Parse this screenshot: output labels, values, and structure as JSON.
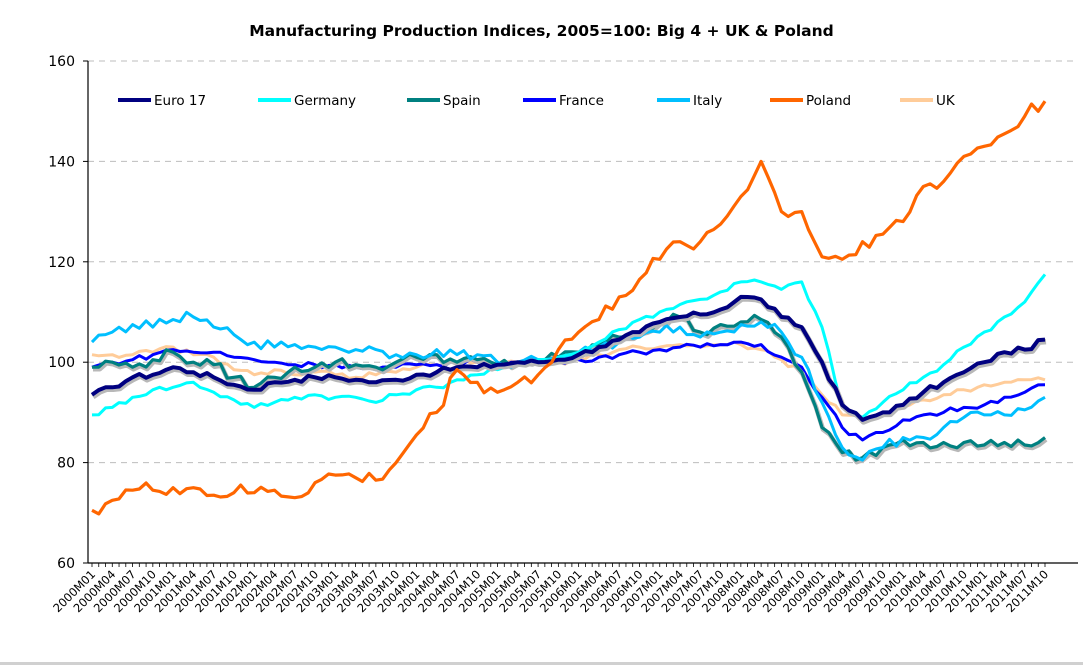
{
  "chart_data": {
    "type": "line",
    "title": "Manufacturing Production Indices, 2005=100: Big 4 + UK & Poland",
    "xlabel": "",
    "ylabel": "",
    "ylim": [
      60,
      160
    ],
    "yticks": [
      60,
      80,
      100,
      120,
      140,
      160
    ],
    "grid": "horizontal-dashed",
    "legend_position": "top",
    "x_tick_labels": [
      "2000M01",
      "2000M04",
      "2000M07",
      "2000M10",
      "2001M01",
      "2001M04",
      "2001M07",
      "2001M10",
      "2002M01",
      "2002M04",
      "2002M07",
      "2002M10",
      "2003M01",
      "2003M04",
      "2003M07",
      "2003M10",
      "2004M01",
      "2004M04",
      "2004M07",
      "2004M10",
      "2005M01",
      "2005M04",
      "2005M07",
      "2005M10",
      "2006M01",
      "2006M04",
      "2006M07",
      "2006M10",
      "2007M01",
      "2007M04",
      "2007M07",
      "2007M10",
      "2008M01",
      "2008M04",
      "2008M07",
      "2008M10",
      "2009M01",
      "2009M04",
      "2009M07",
      "2009M10",
      "2010M01",
      "2010M04",
      "2010M07",
      "2010M10",
      "2011M01",
      "2011M04",
      "2011M07",
      "2011M10"
    ],
    "x_note": "values are quarterly readings at each tick month",
    "series": [
      {
        "name": "Euro 17",
        "color": "#000080",
        "values": [
          93.5,
          95,
          97,
          97.5,
          99,
          98,
          97,
          95.5,
          94.5,
          96,
          96.5,
          97,
          97,
          96.5,
          96,
          96.5,
          97.5,
          98,
          99,
          99,
          99.5,
          100,
          100,
          100.5,
          101.5,
          103,
          104.5,
          106,
          108,
          109,
          109.5,
          110.5,
          113,
          112.5,
          109,
          107,
          100,
          91.5,
          88.5,
          90,
          91.5,
          94,
          96,
          98,
          100,
          102,
          102.5,
          104.5
        ]
      },
      {
        "name": "Germany",
        "color": "#00FFFF",
        "values": [
          89.5,
          91,
          93,
          94.5,
          95,
          96,
          94,
          92.5,
          91,
          92,
          93,
          93.5,
          93,
          93,
          92,
          93.5,
          94.5,
          95,
          96.5,
          97.5,
          98.5,
          99.5,
          100.5,
          101,
          102,
          104,
          106.5,
          108.5,
          110,
          111.5,
          112.5,
          114,
          116,
          116,
          114.5,
          116,
          107,
          91,
          89,
          92,
          94.5,
          97,
          99.5,
          103,
          106,
          109,
          112,
          117.5
        ]
      },
      {
        "name": "Spain",
        "color": "#008080",
        "values": [
          99,
          100,
          99,
          100.5,
          102,
          100,
          99.5,
          97,
          95,
          97,
          99,
          99,
          100,
          99.5,
          99,
          100,
          101,
          101.5,
          100,
          100.5,
          99.5,
          100,
          100.5,
          101,
          102,
          103.5,
          105,
          106,
          108,
          109,
          106,
          107.5,
          108,
          108.5,
          105,
          98,
          87,
          82,
          81,
          83,
          84.5,
          84,
          84,
          84,
          83.5,
          84,
          83.5,
          85
        ]
      },
      {
        "name": "France",
        "color": "#0000FF",
        "values": [
          99,
          100,
          100.5,
          101.5,
          102.5,
          102,
          102,
          101,
          100.5,
          100,
          99.5,
          99.5,
          99.5,
          99,
          98.5,
          99,
          99.5,
          99.5,
          100,
          100,
          99.5,
          100,
          99.5,
          100,
          100.5,
          101,
          101.5,
          102,
          102.5,
          103,
          103,
          103.5,
          104,
          103.5,
          101,
          99,
          93,
          87,
          84.5,
          86,
          88.5,
          89.5,
          90,
          91,
          91.5,
          93,
          94,
          95.5
        ]
      },
      {
        "name": "Italy",
        "color": "#00BFFF",
        "values": [
          104,
          106,
          107.5,
          107,
          108.5,
          109,
          107,
          105.5,
          104,
          103,
          103.5,
          103,
          103,
          102.5,
          102.5,
          101.5,
          101.5,
          102.5,
          101.5,
          101.5,
          100,
          100,
          100.5,
          101,
          102,
          103,
          104,
          105,
          106,
          107,
          105,
          106,
          107.5,
          108,
          106,
          101,
          92,
          83,
          80.5,
          83,
          85,
          85,
          87,
          89,
          89.5,
          89.5,
          90.5,
          93
        ]
      },
      {
        "name": "Poland",
        "color": "#FF6600",
        "values": [
          70.5,
          72.5,
          74.5,
          74.5,
          75,
          75,
          73.5,
          74,
          74,
          74.5,
          73,
          76,
          77.5,
          77,
          76.5,
          80,
          85.5,
          90,
          98.5,
          96,
          94,
          96,
          97.5,
          102.5,
          106,
          108.5,
          113,
          116.5,
          120.5,
          124,
          124,
          127.5,
          133,
          140,
          130,
          130,
          121,
          120.5,
          124,
          125.5,
          128,
          135,
          136,
          141,
          143,
          145.5,
          149,
          152
        ]
      },
      {
        "name": "UK",
        "color": "#FFCC99",
        "values": [
          101.5,
          101.5,
          101.5,
          102,
          103,
          101.5,
          101,
          98.5,
          97.5,
          98.5,
          97.5,
          98,
          97.5,
          97,
          97.5,
          98,
          99,
          99.5,
          100,
          100,
          99.5,
          100,
          100,
          100,
          100.5,
          101.5,
          102.5,
          103,
          103,
          103.5,
          103,
          103.5,
          103.5,
          102.5,
          100.5,
          98,
          93.5,
          89.5,
          89,
          89.5,
          91,
          92.5,
          93.5,
          94.5,
          95.5,
          96,
          96.5,
          96.5
        ]
      }
    ]
  }
}
